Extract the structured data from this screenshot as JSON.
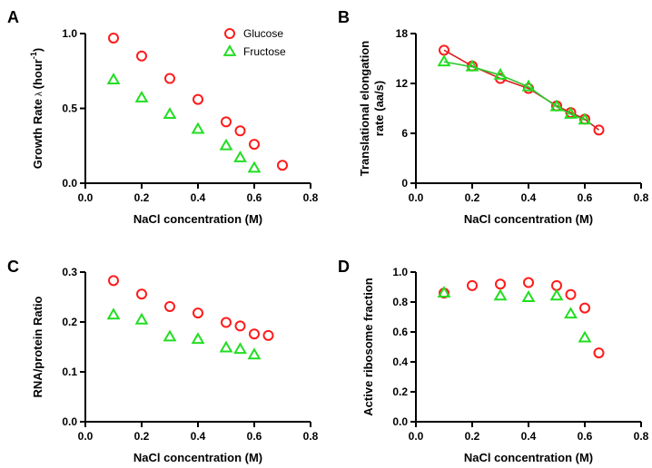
{
  "colors": {
    "glucose": "#ff1a1a",
    "fructose": "#22dd22",
    "line_glucose": "#d42020",
    "line_fructose": "#2ec82e"
  },
  "chart_data": [
    {
      "panel": "A",
      "type": "scatter",
      "xlabel": "NaCl concentration (M)",
      "ylabel": "Growth Rate",
      "ylabel_symbol": "λ",
      "ylabel_unit": "(hour",
      "ylabel_unit_sup": "-1",
      "ylabel_unit_end": ")",
      "xlim": [
        0.0,
        0.8
      ],
      "ylim": [
        0.0,
        1.0
      ],
      "xticks": [
        "0.0",
        "0.2",
        "0.4",
        "0.6",
        "0.8"
      ],
      "yticks": [
        "0.0",
        "0.5",
        "1.0"
      ],
      "legend": "top-right",
      "series": [
        {
          "name": "Glucose",
          "marker": "circle",
          "color": "glucose",
          "x": [
            0.1,
            0.2,
            0.3,
            0.4,
            0.5,
            0.55,
            0.6,
            0.7
          ],
          "y": [
            0.97,
            0.85,
            0.7,
            0.56,
            0.41,
            0.35,
            0.26,
            0.12
          ]
        },
        {
          "name": "Fructose",
          "marker": "triangle",
          "color": "fructose",
          "x": [
            0.1,
            0.2,
            0.3,
            0.4,
            0.5,
            0.55,
            0.6
          ],
          "y": [
            0.69,
            0.57,
            0.46,
            0.36,
            0.25,
            0.17,
            0.1
          ]
        }
      ]
    },
    {
      "panel": "B",
      "type": "line",
      "xlabel": "NaCl concentration (M)",
      "ylabel_lines": [
        "Translational elongation",
        "rate (aa/s)"
      ],
      "xlim": [
        0.0,
        0.8
      ],
      "ylim": [
        0,
        18
      ],
      "xticks": [
        "0.0",
        "0.2",
        "0.4",
        "0.6",
        "0.8"
      ],
      "yticks": [
        "0",
        "6",
        "12",
        "18"
      ],
      "series": [
        {
          "marker": "circle",
          "color": "glucose",
          "line": "line_glucose",
          "x": [
            0.1,
            0.2,
            0.3,
            0.4,
            0.5,
            0.55,
            0.6,
            0.65
          ],
          "y": [
            16.0,
            14.1,
            12.6,
            11.4,
            9.3,
            8.5,
            7.7,
            6.4
          ]
        },
        {
          "marker": "triangle",
          "color": "fructose",
          "line": "line_fructose",
          "x": [
            0.1,
            0.2,
            0.3,
            0.4,
            0.5,
            0.55,
            0.6
          ],
          "y": [
            14.6,
            14.0,
            13.0,
            11.6,
            9.2,
            8.3,
            7.6
          ]
        }
      ]
    },
    {
      "panel": "C",
      "type": "scatter",
      "xlabel": "NaCl concentration (M)",
      "ylabel": "RNA/protein Ratio",
      "xlim": [
        0.0,
        0.8
      ],
      "ylim": [
        0.0,
        0.3
      ],
      "xticks": [
        "0.0",
        "0.2",
        "0.4",
        "0.6",
        "0.8"
      ],
      "yticks": [
        "0.0",
        "0.1",
        "0.2",
        "0.3"
      ],
      "series": [
        {
          "marker": "circle",
          "color": "glucose",
          "x": [
            0.1,
            0.2,
            0.3,
            0.4,
            0.5,
            0.55,
            0.6,
            0.65
          ],
          "y": [
            0.283,
            0.256,
            0.231,
            0.218,
            0.199,
            0.192,
            0.176,
            0.173
          ]
        },
        {
          "marker": "triangle",
          "color": "fructose",
          "x": [
            0.1,
            0.2,
            0.3,
            0.4,
            0.5,
            0.55,
            0.6
          ],
          "y": [
            0.214,
            0.204,
            0.17,
            0.165,
            0.148,
            0.145,
            0.134
          ]
        }
      ]
    },
    {
      "panel": "D",
      "type": "scatter",
      "xlabel": "NaCl concentration (M)",
      "ylabel": "Active ribosome fraction",
      "xlim": [
        0.0,
        0.8
      ],
      "ylim": [
        0.0,
        1.0
      ],
      "xticks": [
        "0.0",
        "0.2",
        "0.4",
        "0.6",
        "0.8"
      ],
      "yticks": [
        "0.0",
        "0.2",
        "0.4",
        "0.6",
        "0.8",
        "1.0"
      ],
      "series": [
        {
          "marker": "circle",
          "color": "glucose",
          "x": [
            0.1,
            0.2,
            0.3,
            0.4,
            0.5,
            0.55,
            0.6,
            0.65
          ],
          "y": [
            0.86,
            0.91,
            0.92,
            0.93,
            0.91,
            0.85,
            0.76,
            0.46
          ]
        },
        {
          "marker": "triangle",
          "color": "fructose",
          "x": [
            0.1,
            0.3,
            0.4,
            0.5,
            0.55,
            0.6
          ],
          "y": [
            0.86,
            0.84,
            0.83,
            0.84,
            0.72,
            0.56
          ]
        }
      ]
    }
  ]
}
